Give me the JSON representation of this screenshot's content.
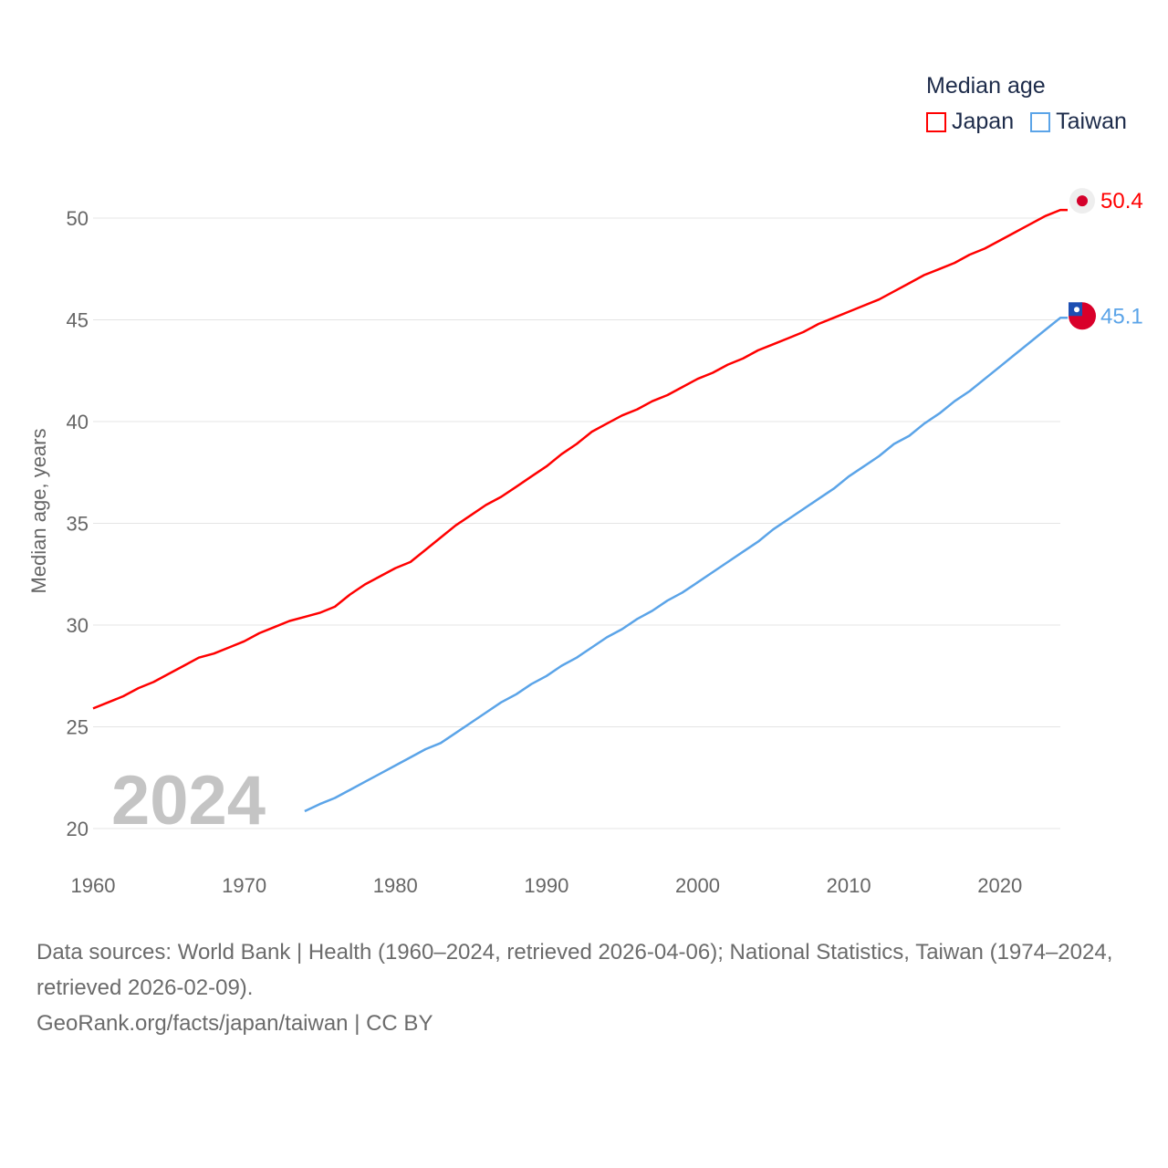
{
  "chart_data": {
    "type": "line",
    "title": "Median age",
    "ylabel": "Median age, years",
    "xlabel": "",
    "xlim": [
      1960,
      2024
    ],
    "ylim": [
      20,
      51.5
    ],
    "xticks": [
      1960,
      1970,
      1980,
      1990,
      2000,
      2010,
      2020
    ],
    "yticks": [
      20,
      25,
      30,
      35,
      40,
      45,
      50
    ],
    "grid": true,
    "legend_placement": "top-right",
    "year_label": "2024",
    "series": [
      {
        "name": "Japan",
        "color": "#ff0000",
        "end_label": "50.4",
        "x_start": 1960,
        "values": [
          25.9,
          26.2,
          26.5,
          26.9,
          27.2,
          27.6,
          28.0,
          28.4,
          28.6,
          28.9,
          29.2,
          29.6,
          29.9,
          30.2,
          30.4,
          30.6,
          30.9,
          31.5,
          32.0,
          32.4,
          32.8,
          33.1,
          33.7,
          34.3,
          34.9,
          35.4,
          35.9,
          36.3,
          36.8,
          37.3,
          37.8,
          38.4,
          38.9,
          39.5,
          39.9,
          40.3,
          40.6,
          41.0,
          41.3,
          41.7,
          42.1,
          42.4,
          42.8,
          43.1,
          43.5,
          43.8,
          44.1,
          44.4,
          44.8,
          45.1,
          45.4,
          45.7,
          46.0,
          46.4,
          46.8,
          47.2,
          47.5,
          47.8,
          48.2,
          48.5,
          48.9,
          49.3,
          49.7,
          50.1,
          50.4
        ]
      },
      {
        "name": "Taiwan",
        "color": "#5ba4e8",
        "end_label": "45.1",
        "x_start": 1974,
        "values": [
          20.85,
          21.2,
          21.5,
          21.9,
          22.3,
          22.7,
          23.1,
          23.5,
          23.9,
          24.2,
          24.7,
          25.2,
          25.7,
          26.2,
          26.6,
          27.1,
          27.5,
          28.0,
          28.4,
          28.9,
          29.4,
          29.8,
          30.3,
          30.7,
          31.2,
          31.6,
          32.1,
          32.6,
          33.1,
          33.6,
          34.1,
          34.7,
          35.2,
          35.7,
          36.2,
          36.7,
          37.3,
          37.8,
          38.3,
          38.9,
          39.3,
          39.9,
          40.4,
          41.0,
          41.5,
          42.1,
          42.7,
          43.3,
          43.9,
          44.5,
          45.1
        ]
      }
    ]
  },
  "footer": {
    "sources": "Data sources: World Bank | Health (1960–2024, retrieved 2026-04-06); National Statistics, Taiwan (1974–2024, retrieved 2026-02-09).",
    "credit": "GeoRank.org/facts/japan/taiwan | CC BY"
  }
}
